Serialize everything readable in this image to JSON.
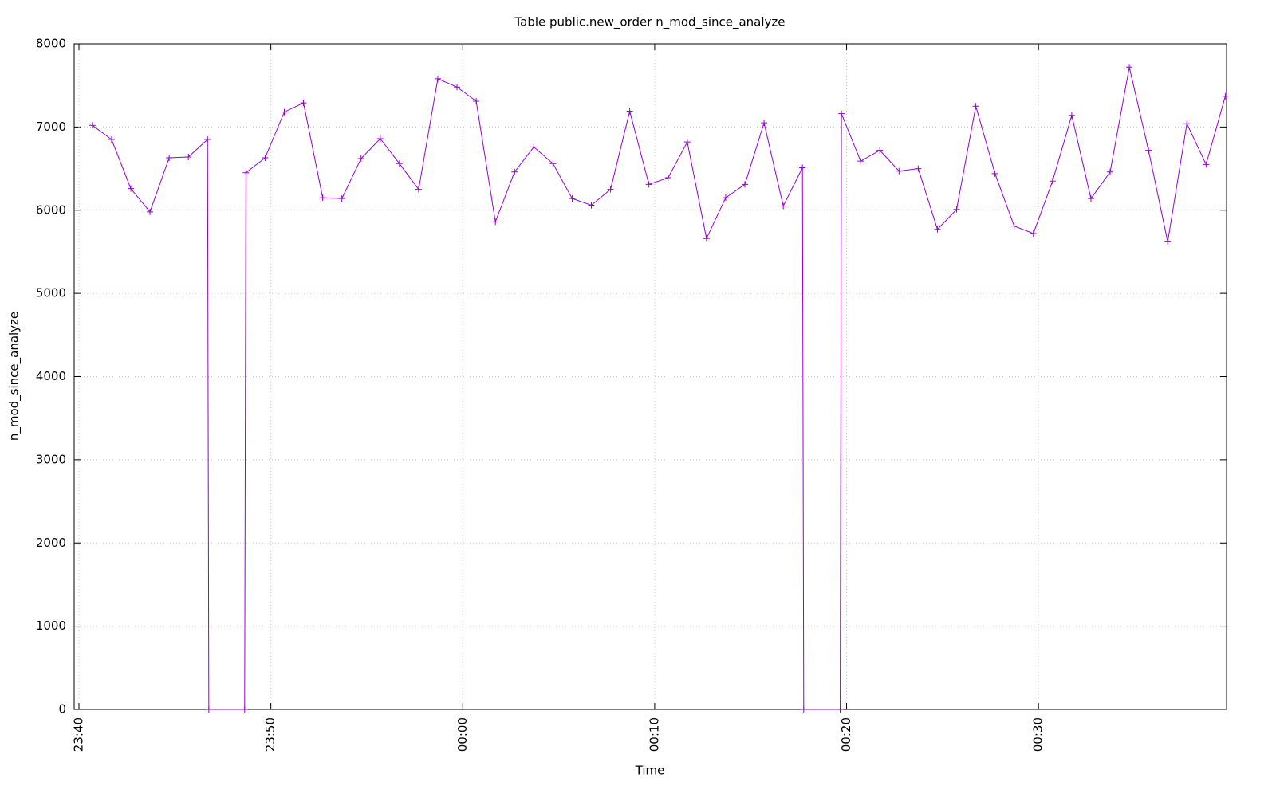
{
  "chart_data": {
    "type": "line",
    "title": "Table public.new_order n_mod_since_analyze",
    "x_label": "Time",
    "y_label": "n_mod_since_analyze",
    "x": [
      "23:40:42",
      "23:41:42",
      "23:42:42",
      "23:43:42",
      "23:44:42",
      "23:45:42",
      "23:46:42",
      "23:46:46",
      "23:48:38",
      "23:48:42",
      "23:49:42",
      "23:50:42",
      "23:51:42",
      "23:52:42",
      "23:53:42",
      "23:54:42",
      "23:55:42",
      "23:56:42",
      "23:57:42",
      "23:58:42",
      "23:59:42",
      "00:00:42",
      "00:01:42",
      "00:02:42",
      "00:03:42",
      "00:04:42",
      "00:05:42",
      "00:06:42",
      "00:07:42",
      "00:08:42",
      "00:09:42",
      "00:10:42",
      "00:11:42",
      "00:12:42",
      "00:13:42",
      "00:14:42",
      "00:15:42",
      "00:16:42",
      "00:17:42",
      "00:17:46",
      "00:19:40",
      "00:19:44",
      "00:20:44",
      "00:21:44",
      "00:22:44",
      "00:23:44",
      "00:24:44",
      "00:25:44",
      "00:26:44",
      "00:27:44",
      "00:28:44",
      "00:29:44",
      "00:30:44",
      "00:31:44",
      "00:32:44",
      "00:33:44",
      "00:34:44",
      "00:35:44",
      "00:36:44",
      "00:37:44",
      "00:38:44",
      "00:39:44"
    ],
    "series": [
      {
        "name": "n_mod_since_analyze",
        "color": "#9400d3",
        "values": [
          7020,
          6850,
          6260,
          5980,
          6630,
          6640,
          6850,
          0,
          0,
          6450,
          6630,
          7180,
          7290,
          6150,
          6140,
          6620,
          6860,
          6560,
          6250,
          7580,
          7480,
          7310,
          5860,
          6460,
          6760,
          6560,
          6140,
          6060,
          6250,
          7190,
          6310,
          6390,
          6820,
          5660,
          6150,
          6310,
          7050,
          6050,
          6510,
          0,
          0,
          7160,
          6590,
          6720,
          6470,
          6500,
          5770,
          6010,
          7250,
          6440,
          5810,
          5720,
          6350,
          7140,
          6140,
          6460,
          7720,
          6720,
          5620,
          7040,
          6550,
          7370
        ]
      }
    ],
    "xlim": [
      "23:39:45",
      "00:39:48"
    ],
    "xticks": [
      "23:40",
      "23:50",
      "00:00",
      "00:10",
      "00:20",
      "00:30"
    ],
    "ylim": [
      0,
      8000
    ],
    "yticks": [
      0,
      1000,
      2000,
      3000,
      4000,
      5000,
      6000,
      7000,
      8000
    ],
    "grid": true
  }
}
